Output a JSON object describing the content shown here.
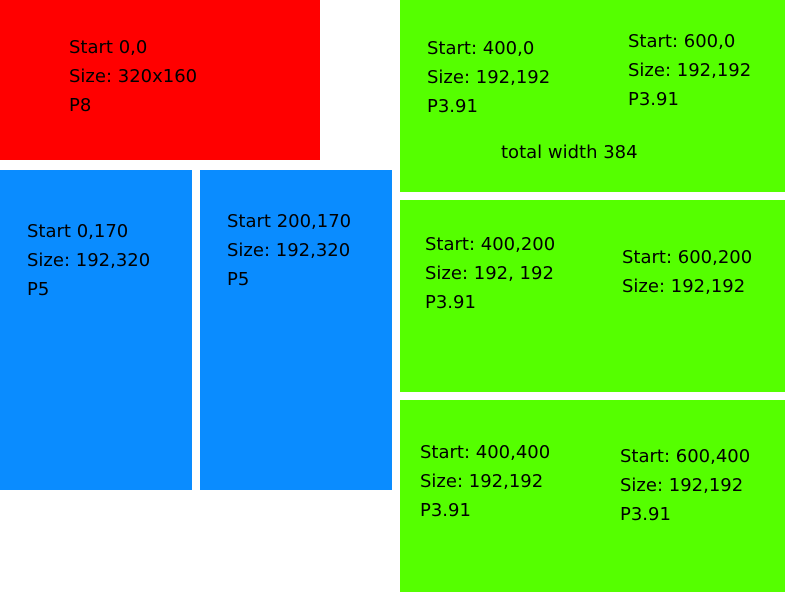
{
  "colors": {
    "red": "#ff0000",
    "blue": "#0a8cff",
    "green": "#55ff00"
  },
  "panels": {
    "red": {
      "start": "Start 0,0",
      "size": "Size: 320x160",
      "p": "P8"
    },
    "blue_left": {
      "start": "Start 0,170",
      "size": "Size: 192,320",
      "p": "P5"
    },
    "blue_right": {
      "start": "Start 200,170",
      "size": "Size: 192,320",
      "p": "P5"
    },
    "green_top_left": {
      "start": "Start: 400,0",
      "size": "Size: 192,192",
      "p": "P3.91"
    },
    "green_top_right": {
      "start": "Start: 600,0",
      "size": "Size: 192,192",
      "p": "P3.91"
    },
    "green_top_note": "total width 384",
    "green_mid_left": {
      "start": "Start: 400,200",
      "size": "Size: 192, 192",
      "p": "P3.91"
    },
    "green_mid_right": {
      "start": "Start: 600,200",
      "size": "Size: 192,192"
    },
    "green_bottom_left": {
      "start": "Start: 400,400",
      "size": "Size: 192,192",
      "p": "P3.91"
    },
    "green_bottom_right": {
      "start": "Start: 600,400",
      "size": "Size: 192,192",
      "p": "P3.91"
    }
  }
}
